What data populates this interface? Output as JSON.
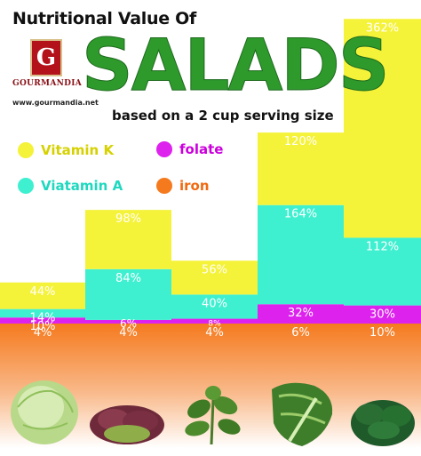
{
  "header": {
    "title": "Nutritional Value Of",
    "big_title": "SALADS",
    "subtitle": "based on a 2 cup serving size"
  },
  "logo": {
    "letter": "G",
    "name": "GOURMANDIA",
    "url": "www.gourmandia.net"
  },
  "legend": [
    {
      "label": "Vitamin K",
      "color": "#f5f23a",
      "text_color": "#d6d100"
    },
    {
      "label": "folate",
      "color": "#dd22ee",
      "text_color": "#cc00dd"
    },
    {
      "label": "Viatamin A",
      "color": "#3ff0d0",
      "text_color": "#1fd8bf"
    },
    {
      "label": "iron",
      "color": "#f57a1e",
      "text_color": "#f06a10"
    }
  ],
  "chart_data": {
    "type": "bar",
    "stacked": true,
    "categories": [
      "Iceberg lettuce",
      "Red leaf lettuce",
      "Arugula",
      "Romaine lettuce",
      "Spinach"
    ],
    "series": [
      {
        "name": "iron",
        "color": "#f57a1e",
        "values": [
          4,
          4,
          4,
          6,
          10
        ],
        "labels": [
          "4%",
          "4%",
          "4%",
          "6%",
          "10%"
        ]
      },
      {
        "name": "folate",
        "color": "#dd22ee",
        "values": [
          10,
          6,
          8,
          32,
          30
        ],
        "labels": [
          "10%",
          "6%",
          "8%",
          "32%",
          "30%"
        ]
      },
      {
        "name": "Viatamin A",
        "color": "#3ff0d0",
        "values": [
          14,
          84,
          40,
          164,
          112
        ],
        "labels": [
          "14%",
          "84%",
          "40%",
          "164%",
          "112%"
        ]
      },
      {
        "name": "Vitamin K",
        "color": "#f5f23a",
        "values": [
          44,
          98,
          56,
          120,
          362
        ],
        "labels": [
          "44%",
          "98%",
          "56%",
          "120%",
          "362%"
        ]
      }
    ]
  },
  "salads": [
    {
      "icon": "iceberg-lettuce-icon"
    },
    {
      "icon": "red-leaf-lettuce-icon"
    },
    {
      "icon": "arugula-icon"
    },
    {
      "icon": "romaine-lettuce-icon"
    },
    {
      "icon": "spinach-icon"
    }
  ]
}
